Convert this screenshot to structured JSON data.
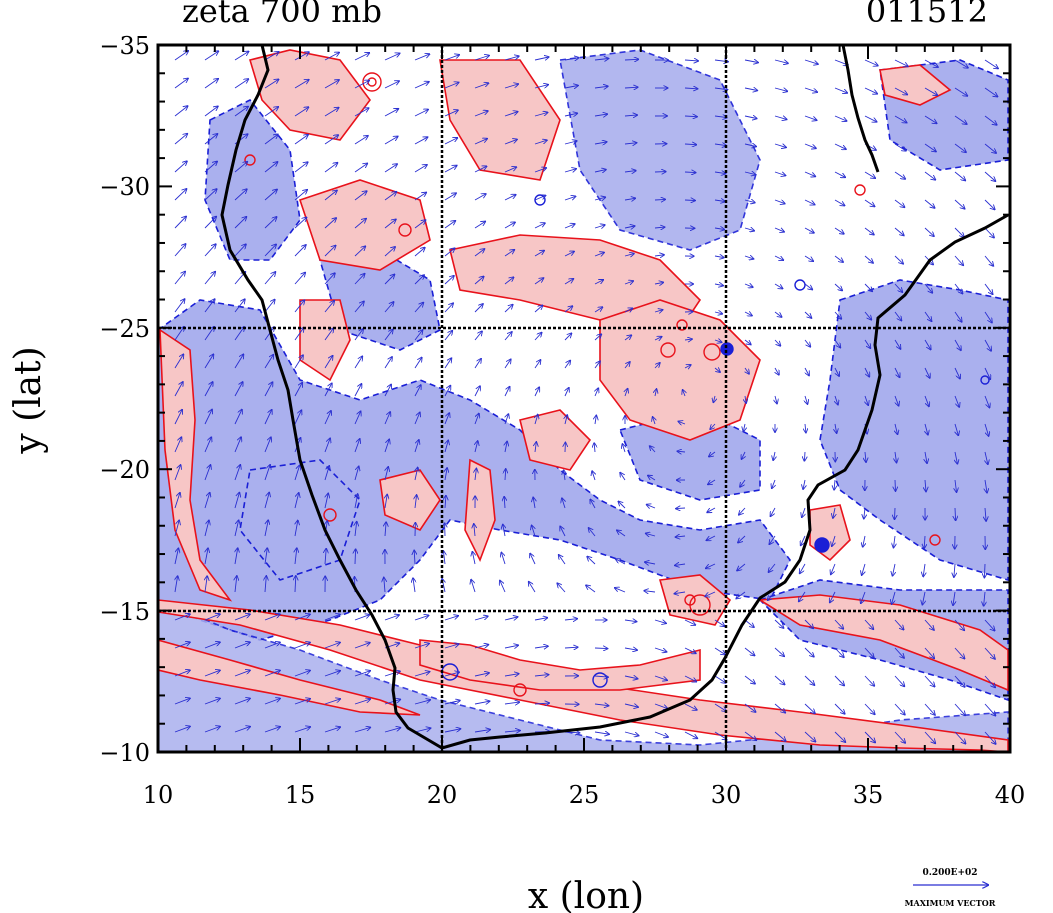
{
  "header": {
    "title": "zeta 700 mb",
    "date_code": "011512"
  },
  "axes": {
    "xlabel": "x (lon)",
    "ylabel": "y (lat)",
    "xlim": [
      10,
      40
    ],
    "ylim": [
      -35,
      -10
    ],
    "x_ticks": [
      "10",
      "15",
      "20",
      "25",
      "30",
      "35",
      "40"
    ],
    "y_ticks": [
      "−35",
      "−30",
      "−25",
      "−20",
      "−15",
      "−10"
    ],
    "grid_lon": [
      20,
      30
    ],
    "grid_lat": [
      -25,
      -15
    ]
  },
  "legend": {
    "vector_value": "0.200E+02",
    "vector_label": "MAXIMUM VECTOR"
  },
  "colors": {
    "positive_fill": "#f7c6c6",
    "positive_line": "#e8121b",
    "negative_fill": "#aab0ee",
    "negative_line": "#1a1fd6",
    "coast": "#000000",
    "vectors": "#2a2fd0"
  }
}
